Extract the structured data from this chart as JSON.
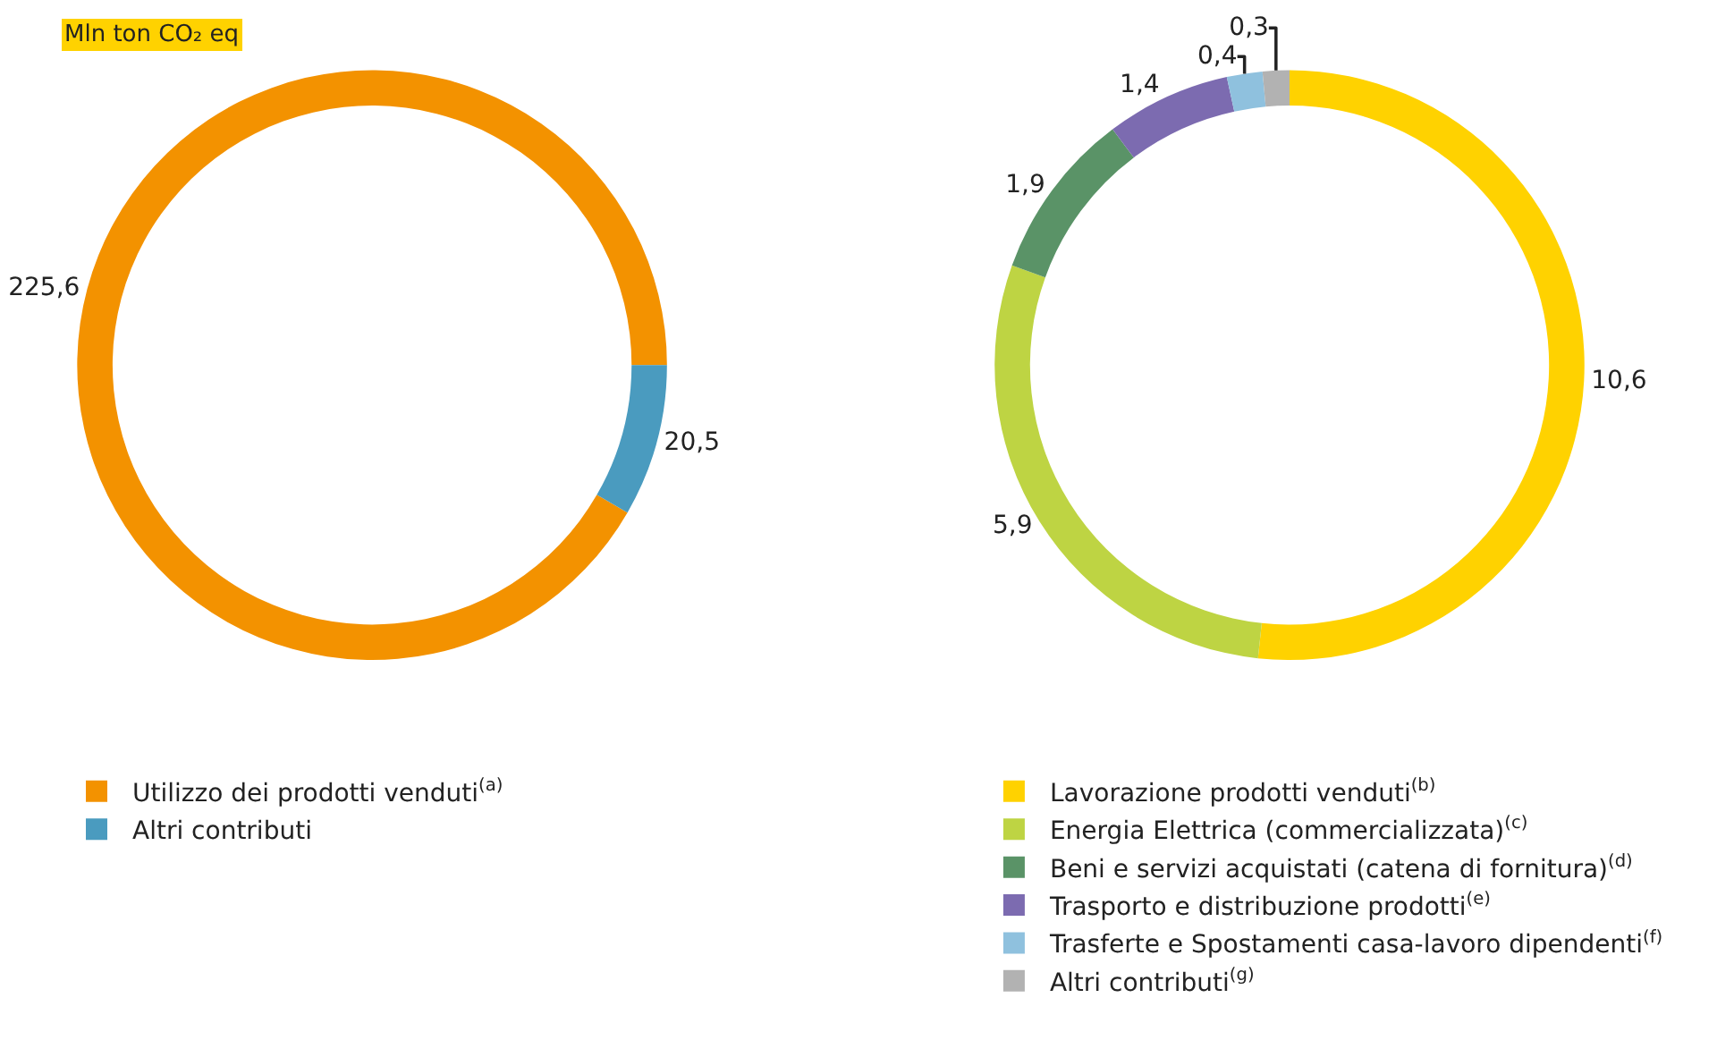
{
  "chart_data": [
    {
      "type": "donut",
      "title": "Mln ton CO₂ eq",
      "categories": [
        "Utilizzo dei prodotti venduti$^{(a)}$",
        "Altri contributi"
      ],
      "values": [
        225.6,
        20.5
      ],
      "colors": [
        "#f39200",
        "#4a9bbf"
      ],
      "value_labels": [
        "225,6",
        "20,5"
      ],
      "legend": "bottom"
    },
    {
      "type": "donut",
      "categories": [
        "Lavorazione prodotti venduti$^{(b)}$",
        "Energia Elettrica (commercializzata)$^{(c)}$",
        "Beni e servizi acquistati (catena di fornitura)$^{(d)}$",
        "Trasporto e distribuzione prodotti$^{(e)}$",
        "Trasferte e Spostamenti casa-lavoro dipendenti$^{(f)}$",
        "Altri contributi$^{(g)}$"
      ],
      "values": [
        10.6,
        5.9,
        1.9,
        1.4,
        0.4,
        0.3
      ],
      "colors": [
        "#ffd200",
        "#bed443",
        "#5a9367",
        "#7c6bb0",
        "#8fc1de",
        "#b2b2b2"
      ],
      "value_labels": [
        "10,6",
        "5,9",
        "1,9",
        "1,4",
        "0,4",
        "0,3"
      ],
      "legend": "bottom"
    }
  ]
}
